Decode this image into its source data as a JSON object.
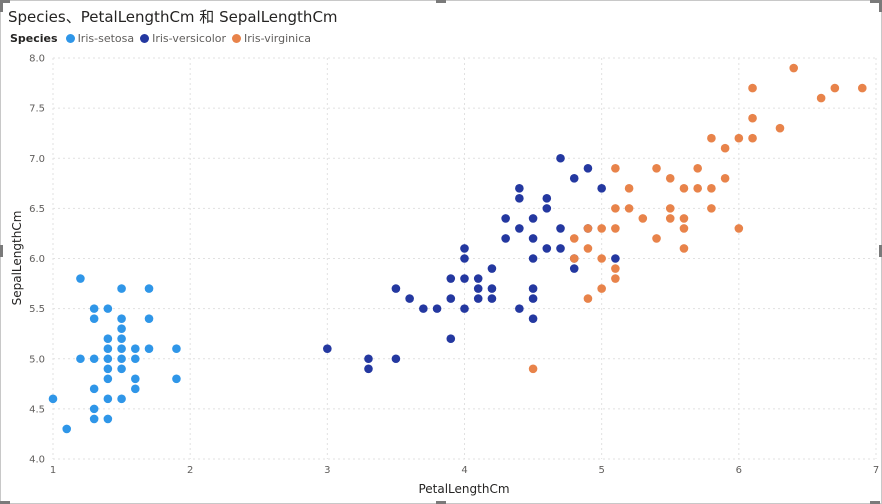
{
  "chart_data": {
    "type": "scatter",
    "title": "Species、PetalLengthCm 和 SepalLengthCm",
    "legend_title": "Species",
    "legend_position": "top-left",
    "xlabel": "PetalLengthCm",
    "ylabel": "SepalLengthCm",
    "xlim": [
      1,
      7
    ],
    "ylim": [
      4.0,
      8.0
    ],
    "x_ticks": [
      "1",
      "2",
      "3",
      "4",
      "5",
      "6",
      "7"
    ],
    "y_ticks": [
      "4.0",
      "4.5",
      "5.0",
      "5.5",
      "6.0",
      "6.5",
      "7.0",
      "7.5",
      "8.0"
    ],
    "grid": true,
    "series": [
      {
        "name": "Iris-setosa",
        "color": "#2f96e8",
        "points": [
          [
            1.0,
            4.6
          ],
          [
            1.1,
            4.3
          ],
          [
            1.2,
            5.8
          ],
          [
            1.2,
            5.0
          ],
          [
            1.3,
            4.4
          ],
          [
            1.3,
            4.5
          ],
          [
            1.3,
            4.7
          ],
          [
            1.3,
            5.0
          ],
          [
            1.3,
            5.4
          ],
          [
            1.3,
            5.5
          ],
          [
            1.4,
            4.4
          ],
          [
            1.4,
            4.6
          ],
          [
            1.4,
            4.8
          ],
          [
            1.4,
            4.9
          ],
          [
            1.4,
            5.0
          ],
          [
            1.4,
            5.1
          ],
          [
            1.4,
            5.2
          ],
          [
            1.4,
            5.5
          ],
          [
            1.5,
            4.6
          ],
          [
            1.5,
            4.9
          ],
          [
            1.5,
            5.0
          ],
          [
            1.5,
            5.1
          ],
          [
            1.5,
            5.2
          ],
          [
            1.5,
            5.3
          ],
          [
            1.5,
            5.4
          ],
          [
            1.5,
            5.7
          ],
          [
            1.6,
            4.7
          ],
          [
            1.6,
            4.8
          ],
          [
            1.6,
            5.0
          ],
          [
            1.6,
            5.1
          ],
          [
            1.7,
            5.1
          ],
          [
            1.7,
            5.4
          ],
          [
            1.7,
            5.7
          ],
          [
            1.9,
            4.8
          ],
          [
            1.9,
            5.1
          ]
        ]
      },
      {
        "name": "Iris-versicolor",
        "color": "#2438a0",
        "points": [
          [
            3.0,
            5.1
          ],
          [
            3.3,
            4.9
          ],
          [
            3.3,
            5.0
          ],
          [
            3.5,
            5.0
          ],
          [
            3.5,
            5.7
          ],
          [
            3.6,
            5.6
          ],
          [
            3.7,
            5.5
          ],
          [
            3.8,
            5.5
          ],
          [
            3.9,
            5.2
          ],
          [
            3.9,
            5.6
          ],
          [
            3.9,
            5.8
          ],
          [
            4.0,
            5.5
          ],
          [
            4.0,
            5.8
          ],
          [
            4.0,
            6.0
          ],
          [
            4.0,
            6.1
          ],
          [
            4.1,
            5.6
          ],
          [
            4.1,
            5.7
          ],
          [
            4.1,
            5.8
          ],
          [
            4.2,
            5.6
          ],
          [
            4.2,
            5.7
          ],
          [
            4.2,
            5.9
          ],
          [
            4.3,
            6.2
          ],
          [
            4.3,
            6.4
          ],
          [
            4.4,
            5.5
          ],
          [
            4.4,
            6.3
          ],
          [
            4.4,
            6.6
          ],
          [
            4.4,
            6.7
          ],
          [
            4.5,
            5.4
          ],
          [
            4.5,
            5.6
          ],
          [
            4.5,
            5.7
          ],
          [
            4.5,
            6.0
          ],
          [
            4.5,
            6.2
          ],
          [
            4.5,
            6.4
          ],
          [
            4.6,
            6.1
          ],
          [
            4.6,
            6.5
          ],
          [
            4.6,
            6.6
          ],
          [
            4.7,
            6.1
          ],
          [
            4.7,
            6.3
          ],
          [
            4.7,
            7.0
          ],
          [
            4.8,
            5.9
          ],
          [
            4.8,
            6.0
          ],
          [
            4.8,
            6.8
          ],
          [
            4.9,
            6.3
          ],
          [
            4.9,
            6.9
          ],
          [
            5.0,
            6.7
          ],
          [
            5.1,
            6.0
          ]
        ]
      },
      {
        "name": "Iris-virginica",
        "color": "#e8834a",
        "points": [
          [
            4.5,
            4.9
          ],
          [
            4.8,
            6.0
          ],
          [
            4.8,
            6.2
          ],
          [
            4.9,
            5.6
          ],
          [
            4.9,
            6.1
          ],
          [
            4.9,
            6.3
          ],
          [
            5.0,
            5.7
          ],
          [
            5.0,
            6.0
          ],
          [
            5.0,
            6.3
          ],
          [
            5.1,
            5.8
          ],
          [
            5.1,
            5.9
          ],
          [
            5.1,
            6.3
          ],
          [
            5.1,
            6.5
          ],
          [
            5.1,
            6.9
          ],
          [
            5.2,
            6.5
          ],
          [
            5.2,
            6.7
          ],
          [
            5.3,
            6.4
          ],
          [
            5.4,
            6.2
          ],
          [
            5.4,
            6.9
          ],
          [
            5.5,
            6.4
          ],
          [
            5.5,
            6.5
          ],
          [
            5.5,
            6.8
          ],
          [
            5.6,
            6.1
          ],
          [
            5.6,
            6.3
          ],
          [
            5.6,
            6.4
          ],
          [
            5.6,
            6.7
          ],
          [
            5.7,
            6.7
          ],
          [
            5.7,
            6.9
          ],
          [
            5.8,
            6.5
          ],
          [
            5.8,
            6.7
          ],
          [
            5.8,
            7.2
          ],
          [
            5.9,
            6.8
          ],
          [
            5.9,
            7.1
          ],
          [
            6.0,
            6.3
          ],
          [
            6.0,
            7.2
          ],
          [
            6.1,
            7.2
          ],
          [
            6.1,
            7.4
          ],
          [
            6.1,
            7.7
          ],
          [
            6.3,
            7.3
          ],
          [
            6.4,
            7.9
          ],
          [
            6.6,
            7.6
          ],
          [
            6.7,
            7.7
          ],
          [
            6.9,
            7.7
          ]
        ]
      }
    ]
  }
}
